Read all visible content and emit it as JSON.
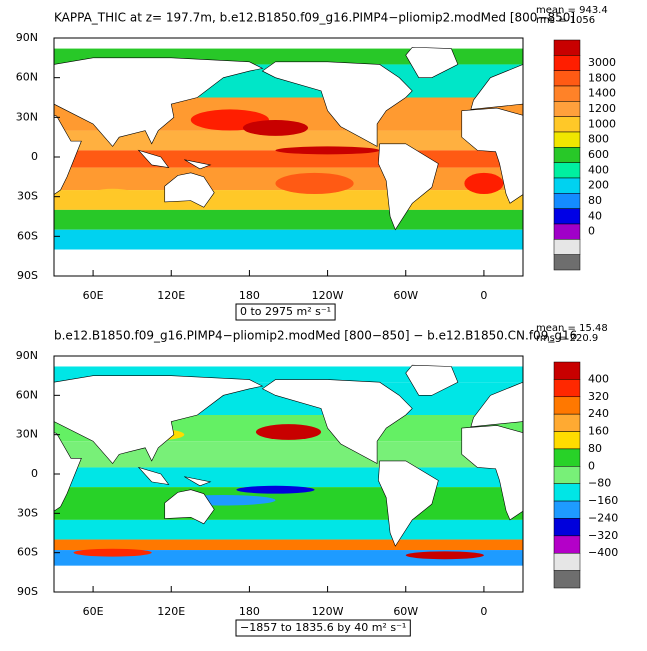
{
  "panels": [
    {
      "title": "KAPPA_THIC at z= 197.7m, b.e12.B1850.f09_g16.PIMP4−pliomip2.modMed [800−850]",
      "stats": [
        "mean = 943.4",
        "rms = 1056"
      ],
      "lat_ticks": [
        "90N",
        "60N",
        "30N",
        "0",
        "30S",
        "60S",
        "90S"
      ],
      "lon_ticks": [
        "60E",
        "120E",
        "180",
        "120W",
        "60W",
        "0"
      ],
      "range_label": "0 to 2975 m² s⁻¹",
      "colorbar": {
        "labels": [
          "3000",
          "1800",
          "1400",
          "1200",
          "1000",
          "800",
          "600",
          "400",
          "200",
          "80",
          "40",
          "0"
        ],
        "colors": [
          "#c80000",
          "#ff1e00",
          "#ff5a14",
          "#ff8228",
          "#ffa03c",
          "#ffc828",
          "#f0e600",
          "#28c828",
          "#00f0a0",
          "#00d2f0",
          "#148cff",
          "#0000e6",
          "#a000c8",
          "#e6e6e6",
          "#6e6e6e"
        ]
      }
    },
    {
      "title": "b.e12.B1850.f09_g16.PIMP4−pliomip2.modMed [800−850] − b.e12.B1850.CN.f09_g16",
      "stats": [
        "mean = 15.48",
        "rms = 220.9"
      ],
      "lat_ticks": [
        "90N",
        "60N",
        "30N",
        "0",
        "30S",
        "60S",
        "90S"
      ],
      "lon_ticks": [
        "60E",
        "120E",
        "180",
        "120W",
        "60W",
        "0"
      ],
      "range_label": "−1857 to 1835.6 by 40 m² s⁻¹",
      "colorbar": {
        "labels": [
          "400",
          "320",
          "240",
          "160",
          "80",
          "0",
          "−80",
          "−160",
          "−240",
          "−320",
          "−400"
        ],
        "colors": [
          "#c80000",
          "#ff2800",
          "#ff7800",
          "#ffaa32",
          "#ffdc00",
          "#28d228",
          "#78f078",
          "#00e6e6",
          "#1e9bff",
          "#0000dc",
          "#b400c8",
          "#e6e6e6",
          "#6e6e6e"
        ]
      }
    }
  ]
}
